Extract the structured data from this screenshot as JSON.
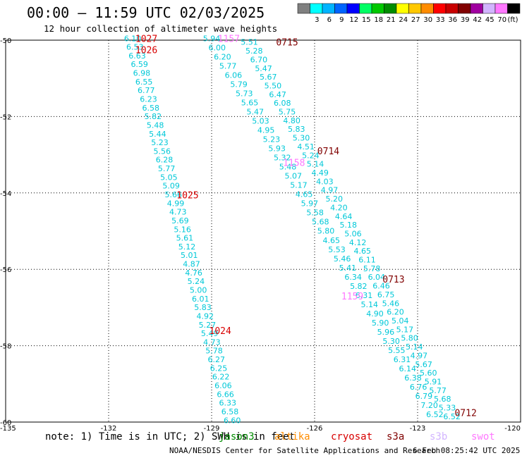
{
  "header": {
    "title": "00:00 – 11:59 UTC 02/03/2025",
    "subtitle": "12 hour collection of altimeter wave heights"
  },
  "legend": {
    "unit": "(ft)",
    "bins": [
      {
        "label": "",
        "color": "#808080"
      },
      {
        "label": "3",
        "color": "#00ffff"
      },
      {
        "label": "6",
        "color": "#00b4ff"
      },
      {
        "label": "9",
        "color": "#0064ff"
      },
      {
        "label": "12",
        "color": "#0000ff"
      },
      {
        "label": "15",
        "color": "#00ff64"
      },
      {
        "label": "18",
        "color": "#00c800"
      },
      {
        "label": "21",
        "color": "#008c00"
      },
      {
        "label": "24",
        "color": "#ffff00"
      },
      {
        "label": "27",
        "color": "#ffc800"
      },
      {
        "label": "30",
        "color": "#ff8c00"
      },
      {
        "label": "33",
        "color": "#ff0000"
      },
      {
        "label": "36",
        "color": "#c80000"
      },
      {
        "label": "39",
        "color": "#800000"
      },
      {
        "label": "42",
        "color": "#a000a0"
      },
      {
        "label": "45",
        "color": "#d2b4ff"
      },
      {
        "label": "70",
        "color": "#ff78ff"
      },
      {
        "label": "",
        "color": "#000000"
      }
    ]
  },
  "axes": {
    "lon_ticks": [
      {
        "value": -135,
        "label": "-135"
      },
      {
        "value": -132,
        "label": "-132"
      },
      {
        "value": -129,
        "label": "-129"
      },
      {
        "value": -126,
        "label": "-126"
      },
      {
        "value": -123,
        "label": "-123"
      },
      {
        "value": -120,
        "label": "-120"
      }
    ],
    "lat_ticks": [
      {
        "value": -50,
        "label": "-50"
      },
      {
        "value": -52,
        "label": "-52"
      },
      {
        "value": -54,
        "label": "-54"
      },
      {
        "value": -56,
        "label": "-56"
      },
      {
        "value": -58,
        "label": "-58"
      },
      {
        "value": -60,
        "label": "-60"
      }
    ]
  },
  "track_colors": {
    "swh": "#00c8d8",
    "jason": "#d80000",
    "cryosat": "#800000",
    "swot": "#ff78ff"
  },
  "tracks": [
    {
      "mission": "jason",
      "values": [
        "6.10",
        "6.53",
        "6.63",
        "6.59",
        "6.98",
        "6.55",
        "6.77",
        "6.23",
        "6.58",
        "5.82",
        "5.48",
        "5.44",
        "5.23",
        "5.56",
        "6.28",
        "5.77",
        "5.05",
        "5.09",
        "5.66",
        "4.99",
        "4.73",
        "5.69",
        "5.16",
        "5.61",
        "5.12",
        "5.01",
        "4.87",
        "4.76",
        "5.24",
        "5.00",
        "6.01",
        "5.83",
        "4.92",
        "5.27",
        "5.49",
        "4.73",
        "5.78",
        "6.27",
        "6.25",
        "6.22",
        "6.06",
        "6.66",
        "6.33",
        "6.58",
        "6.60"
      ],
      "times": [
        {
          "label": "1027",
          "lat": -49.95,
          "lon": -130.9
        },
        {
          "label": "1026",
          "lat": -50.25,
          "lon": -130.9
        },
        {
          "label": "1025",
          "lat": -54.05,
          "lon": -129.7
        },
        {
          "label": "1024",
          "lat": -57.6,
          "lon": -128.75
        }
      ]
    },
    {
      "mission": "swot",
      "values": [
        "5.94",
        "6.00",
        "6.20",
        "5.77",
        "6.06",
        "5.79",
        "5.73",
        "5.65",
        "5.47",
        "5.03",
        "4.95",
        "5.23",
        "5.93",
        "5.32",
        "5.48",
        "5.07",
        "5.17",
        "4.65",
        "5.97",
        "5.58",
        "5.68",
        "5.80",
        "4.65",
        "5.53",
        "5.46",
        "5.41",
        "6.34",
        "5.82",
        "6.31",
        "5.14",
        "4.90",
        "5.90",
        "5.96",
        "5.30",
        "5.55",
        "6.31",
        "6.14",
        "6.38",
        "6.76",
        "6.79",
        "7.20",
        "6.52"
      ],
      "times": [
        {
          "label": "1157",
          "lat": -49.95,
          "lon": -128.5
        },
        {
          "label": "1158",
          "lat": -53.2,
          "lon": -126.6
        },
        {
          "label": "1159",
          "lat": -56.7,
          "lon": -124.9
        }
      ]
    },
    {
      "mission": "cryosat",
      "values": [
        "5.51",
        "5.28",
        "6.70",
        "5.47",
        "5.67",
        "5.50",
        "6.47",
        "6.08",
        "5.75",
        "4.80",
        "5.83",
        "5.30",
        "4.51",
        "5.24",
        "5.14",
        "4.49",
        "4.03",
        "4.97",
        "5.20",
        "4.20",
        "4.64",
        "5.18",
        "5.06",
        "4.12",
        "4.65",
        "6.11",
        "5.78",
        "6.04",
        "6.46",
        "6.75",
        "5.46",
        "6.20",
        "5.04",
        "5.17",
        "5.80",
        "5.14",
        "4.97",
        "5.67",
        "5.60",
        "5.91",
        "5.77",
        "5.68",
        "5.33",
        "6.52"
      ],
      "times": [
        {
          "label": "0715",
          "lat": -50.05,
          "lon": -126.8
        },
        {
          "label": "0714",
          "lat": -52.9,
          "lon": -125.6
        },
        {
          "label": "0713",
          "lat": -56.25,
          "lon": -123.7
        },
        {
          "label": "0712",
          "lat": -59.75,
          "lon": -121.6
        }
      ]
    }
  ],
  "footer": {
    "note": "note: 1) Time is in UTC; 2) SWH is in feet",
    "missions": [
      {
        "name": "jason3",
        "color": "#008c00"
      },
      {
        "name": "altika",
        "color": "#ff8c00"
      },
      {
        "name": "cryosat",
        "color": "#d80000"
      },
      {
        "name": "s3a",
        "color": "#800000"
      },
      {
        "name": "s3b",
        "color": "#d2b4ff"
      },
      {
        "name": "swot",
        "color": "#ff78ff"
      }
    ],
    "credit": "NOAA/NESDIS Center for Satellite Applications and Research",
    "timestamp": "6 Feb 08:25:42 UTC 2025"
  }
}
